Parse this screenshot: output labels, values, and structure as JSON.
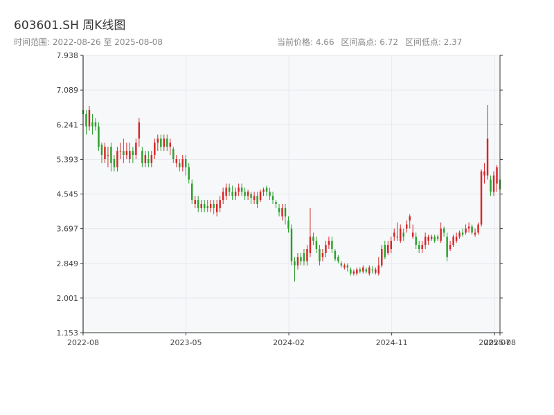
{
  "header": {
    "title": "603601.SH 周K线图",
    "subtitle": "时间范围: 2022-08-26 至 2025-08-08",
    "current_price": "当前价格: 4.66",
    "range_high": "区间高点: 6.72",
    "range_low": "区间低点: 2.37"
  },
  "colors": {
    "up": "#d62728",
    "down": "#2ca02c",
    "grid": "#e6e9ee",
    "plot_bg": "#f6f8fa",
    "axis": "#333333"
  },
  "chart_data": {
    "type": "candlestick",
    "title": "603601.SH 周K线图",
    "xlabel": "",
    "ylabel": "",
    "ylim": [
      1.153,
      7.938
    ],
    "yticks": [
      1.153,
      2.001,
      2.849,
      3.697,
      4.545,
      5.393,
      6.241,
      7.089,
      7.938
    ],
    "ytick_labels": [
      "1.153",
      "2.001",
      "2.849",
      "3.697",
      "4.545",
      "5.393",
      "6.241",
      "7.089",
      "7.938"
    ],
    "xlim": [
      "2022-08-26",
      "2025-08-08"
    ],
    "xticks": [
      "2022-08",
      "2023-05",
      "2024-02",
      "2024-11",
      "2025-07",
      "2025-08"
    ],
    "xtick_dates": [
      "2022-08-26",
      "2023-05-19",
      "2024-02-09",
      "2024-11-01",
      "2025-07-25",
      "2025-08-08"
    ],
    "grid": true,
    "x_spacing": "weekly",
    "candles": [
      [
        6.6,
        6.5,
        6.7,
        6.3
      ],
      [
        6.5,
        6.2,
        6.6,
        6.0
      ],
      [
        6.2,
        6.6,
        6.7,
        6.1
      ],
      [
        6.3,
        6.2,
        6.5,
        6.0
      ],
      [
        6.3,
        6.2,
        6.4,
        6.1
      ],
      [
        6.2,
        5.7,
        6.3,
        5.6
      ],
      [
        5.75,
        5.5,
        5.8,
        5.3
      ],
      [
        5.4,
        5.7,
        5.8,
        5.3
      ],
      [
        5.5,
        5.5,
        5.7,
        5.2
      ],
      [
        5.7,
        5.3,
        5.8,
        5.1
      ],
      [
        5.4,
        5.2,
        5.5,
        5.1
      ],
      [
        5.2,
        5.6,
        5.7,
        5.1
      ],
      [
        5.6,
        5.6,
        5.8,
        5.4
      ],
      [
        5.6,
        5.5,
        5.9,
        5.3
      ],
      [
        5.5,
        5.6,
        5.8,
        5.4
      ],
      [
        5.4,
        5.6,
        5.8,
        5.3
      ],
      [
        5.6,
        5.5,
        5.7,
        5.3
      ],
      [
        5.5,
        5.8,
        5.9,
        5.4
      ],
      [
        5.9,
        6.3,
        6.4,
        5.7
      ],
      [
        5.6,
        5.3,
        5.7,
        5.2
      ],
      [
        5.3,
        5.5,
        5.6,
        5.2
      ],
      [
        5.4,
        5.3,
        5.6,
        5.2
      ],
      [
        5.3,
        5.5,
        5.6,
        5.2
      ],
      [
        5.5,
        5.8,
        5.9,
        5.4
      ],
      [
        5.8,
        5.9,
        6.0,
        5.6
      ],
      [
        5.9,
        5.7,
        6.0,
        5.6
      ],
      [
        5.7,
        5.9,
        6.0,
        5.6
      ],
      [
        5.9,
        5.7,
        6.0,
        5.6
      ],
      [
        5.7,
        5.8,
        5.9,
        5.5
      ],
      [
        5.65,
        5.4,
        5.7,
        5.3
      ],
      [
        5.3,
        5.4,
        5.5,
        5.2
      ],
      [
        5.3,
        5.2,
        5.4,
        5.1
      ],
      [
        5.2,
        5.4,
        5.5,
        5.1
      ],
      [
        5.4,
        5.2,
        5.5,
        5.0
      ],
      [
        5.2,
        4.9,
        5.3,
        4.8
      ],
      [
        4.8,
        4.4,
        4.9,
        4.3
      ],
      [
        4.3,
        4.4,
        4.5,
        4.2
      ],
      [
        4.4,
        4.2,
        4.5,
        4.1
      ],
      [
        4.2,
        4.3,
        4.4,
        4.1
      ],
      [
        4.3,
        4.2,
        4.4,
        4.1
      ],
      [
        4.25,
        4.2,
        4.4,
        4.1
      ],
      [
        4.2,
        4.3,
        4.4,
        4.1
      ],
      [
        4.3,
        4.2,
        4.4,
        4.05
      ],
      [
        4.1,
        4.3,
        4.4,
        4.0
      ],
      [
        4.2,
        4.4,
        4.5,
        4.1
      ],
      [
        4.4,
        4.6,
        4.7,
        4.3
      ],
      [
        4.5,
        4.7,
        4.8,
        4.4
      ],
      [
        4.7,
        4.6,
        4.8,
        4.5
      ],
      [
        4.6,
        4.5,
        4.75,
        4.4
      ],
      [
        4.5,
        4.6,
        4.7,
        4.4
      ],
      [
        4.6,
        4.7,
        4.8,
        4.5
      ],
      [
        4.7,
        4.6,
        4.8,
        4.5
      ],
      [
        4.6,
        4.5,
        4.7,
        4.4
      ],
      [
        4.5,
        4.6,
        4.65,
        4.4
      ],
      [
        4.55,
        4.45,
        4.6,
        4.3
      ],
      [
        4.4,
        4.5,
        4.6,
        4.3
      ],
      [
        4.5,
        4.3,
        4.6,
        4.2
      ],
      [
        4.4,
        4.6,
        4.65,
        4.35
      ],
      [
        4.6,
        4.65,
        4.7,
        4.5
      ],
      [
        4.7,
        4.6,
        4.75,
        4.5
      ],
      [
        4.6,
        4.5,
        4.7,
        4.4
      ],
      [
        4.5,
        4.4,
        4.6,
        4.3
      ],
      [
        4.35,
        4.3,
        4.4,
        4.2
      ],
      [
        4.2,
        4.1,
        4.3,
        4.0
      ],
      [
        4.0,
        4.2,
        4.3,
        3.9
      ],
      [
        4.2,
        4.0,
        4.3,
        3.8
      ],
      [
        3.9,
        3.7,
        4.0,
        3.6
      ],
      [
        3.7,
        2.9,
        3.8,
        2.8
      ],
      [
        2.9,
        2.8,
        3.0,
        2.4
      ],
      [
        2.8,
        3.0,
        3.1,
        2.7
      ],
      [
        3.0,
        2.9,
        3.1,
        2.8
      ],
      [
        3.1,
        2.9,
        3.2,
        2.8
      ],
      [
        2.9,
        3.2,
        3.3,
        2.8
      ],
      [
        3.1,
        3.5,
        4.2,
        3.0
      ],
      [
        3.5,
        3.4,
        3.6,
        3.3
      ],
      [
        3.4,
        3.2,
        3.5,
        3.1
      ],
      [
        3.2,
        2.9,
        3.3,
        2.8
      ],
      [
        3.0,
        3.1,
        3.2,
        2.9
      ],
      [
        3.1,
        3.3,
        3.4,
        3.0
      ],
      [
        3.3,
        3.4,
        3.5,
        3.2
      ],
      [
        3.4,
        3.2,
        3.5,
        3.1
      ],
      [
        3.15,
        2.95,
        3.2,
        2.9
      ],
      [
        3.0,
        2.9,
        3.05,
        2.85
      ],
      [
        2.85,
        2.8,
        2.9,
        2.75
      ],
      [
        2.75,
        2.8,
        2.85,
        2.7
      ],
      [
        2.8,
        2.75,
        2.85,
        2.65
      ],
      [
        2.7,
        2.6,
        2.75,
        2.55
      ],
      [
        2.6,
        2.65,
        2.7,
        2.55
      ],
      [
        2.6,
        2.7,
        2.75,
        2.55
      ],
      [
        2.7,
        2.65,
        2.75,
        2.6
      ],
      [
        2.65,
        2.75,
        2.8,
        2.6
      ],
      [
        2.7,
        2.65,
        2.75,
        2.6
      ],
      [
        2.6,
        2.75,
        2.8,
        2.55
      ],
      [
        2.7,
        2.68,
        2.78,
        2.6
      ],
      [
        2.62,
        2.7,
        2.75,
        2.58
      ],
      [
        2.6,
        2.8,
        3.0,
        2.55
      ],
      [
        2.8,
        3.2,
        3.3,
        2.75
      ],
      [
        3.3,
        3.0,
        3.4,
        2.95
      ],
      [
        3.1,
        3.3,
        3.4,
        3.05
      ],
      [
        3.2,
        3.4,
        3.5,
        3.1
      ],
      [
        3.5,
        3.6,
        3.7,
        3.4
      ],
      [
        3.5,
        3.5,
        3.85,
        3.4
      ],
      [
        3.4,
        3.7,
        3.8,
        3.35
      ],
      [
        3.6,
        3.5,
        3.7,
        3.4
      ],
      [
        3.7,
        3.8,
        3.9,
        3.6
      ],
      [
        3.9,
        4.0,
        4.05,
        3.7
      ],
      [
        3.5,
        3.6,
        3.8,
        3.45
      ],
      [
        3.5,
        3.3,
        3.6,
        3.2
      ],
      [
        3.3,
        3.2,
        3.4,
        3.1
      ],
      [
        3.2,
        3.3,
        3.4,
        3.1
      ],
      [
        3.3,
        3.5,
        3.6,
        3.2
      ],
      [
        3.4,
        3.5,
        3.55,
        3.3
      ],
      [
        3.45,
        3.5,
        3.55,
        3.4
      ],
      [
        3.5,
        3.4,
        3.55,
        3.35
      ],
      [
        3.5,
        3.45,
        3.55,
        3.4
      ],
      [
        3.4,
        3.7,
        3.85,
        3.35
      ],
      [
        3.7,
        3.6,
        3.75,
        3.5
      ],
      [
        3.5,
        3.0,
        3.6,
        2.9
      ],
      [
        3.2,
        3.3,
        3.4,
        3.15
      ],
      [
        3.3,
        3.5,
        3.55,
        3.25
      ],
      [
        3.4,
        3.5,
        3.6,
        3.35
      ],
      [
        3.5,
        3.6,
        3.65,
        3.45
      ],
      [
        3.6,
        3.55,
        3.7,
        3.5
      ],
      [
        3.6,
        3.7,
        3.8,
        3.55
      ],
      [
        3.7,
        3.75,
        3.85,
        3.6
      ],
      [
        3.75,
        3.6,
        3.8,
        3.55
      ],
      [
        3.55,
        3.6,
        3.7,
        3.5
      ],
      [
        3.6,
        3.8,
        3.85,
        3.55
      ],
      [
        3.8,
        5.1,
        5.15,
        3.75
      ],
      [
        5.0,
        5.1,
        5.3,
        4.8
      ],
      [
        5.0,
        5.9,
        6.72,
        4.9
      ],
      [
        4.9,
        4.6,
        5.0,
        4.5
      ],
      [
        4.6,
        5.0,
        5.1,
        4.5
      ],
      [
        4.8,
        5.2,
        5.25,
        4.6
      ],
      [
        4.9,
        4.66,
        5.0,
        4.5
      ]
    ]
  }
}
